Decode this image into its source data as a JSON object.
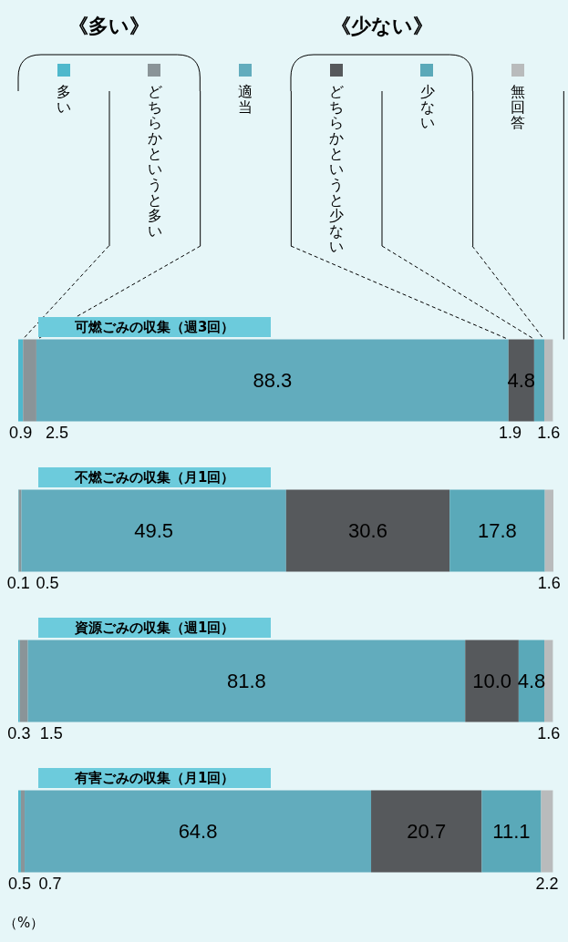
{
  "chart_data": {
    "type": "bar",
    "orientation": "horizontal",
    "stacked": true,
    "legend": "top",
    "categories": [
      "可燃ごみの収集（週3回）",
      "不燃ごみの収集（月1回）",
      "資源ごみの収集（週1回）",
      "有害ごみの収集（月1回）"
    ],
    "series": [
      {
        "name": "多い",
        "color": "#4fb8cc",
        "values": [
          0.9,
          0.1,
          0.3,
          0.5
        ],
        "value_labels": [
          "0.9",
          "0.1",
          "0.3",
          "0.5"
        ]
      },
      {
        "name": "どちらかというと多い",
        "color": "#8a9498",
        "values": [
          2.5,
          0.5,
          1.5,
          0.7
        ],
        "value_labels": [
          "2.5",
          "0.5",
          "1.5",
          "0.7"
        ]
      },
      {
        "name": "適当",
        "color": "#62acbd",
        "values": [
          88.3,
          49.5,
          81.8,
          64.8
        ],
        "value_labels": [
          "88.3",
          "49.5",
          "81.8",
          "64.8"
        ]
      },
      {
        "name": "どちらかというと少ない",
        "color": "#56595c",
        "values": [
          4.8,
          30.6,
          10.0,
          20.7
        ],
        "value_labels": [
          "4.8",
          "30.6",
          "10.0",
          "20.7"
        ]
      },
      {
        "name": "少ない",
        "color": "#5aa9b9",
        "values": [
          1.9,
          17.8,
          4.8,
          11.1
        ],
        "value_labels": [
          "1.9",
          "17.8",
          "4.8",
          "11.1"
        ]
      },
      {
        "name": "無回答",
        "color": "#b9bbbc",
        "values": [
          1.6,
          1.6,
          1.6,
          2.2
        ],
        "value_labels": [
          "1.6",
          "1.6",
          "1.6",
          "2.2"
        ]
      }
    ],
    "annotations": [
      "《多い》",
      "《少ない》",
      "（%）"
    ]
  }
}
